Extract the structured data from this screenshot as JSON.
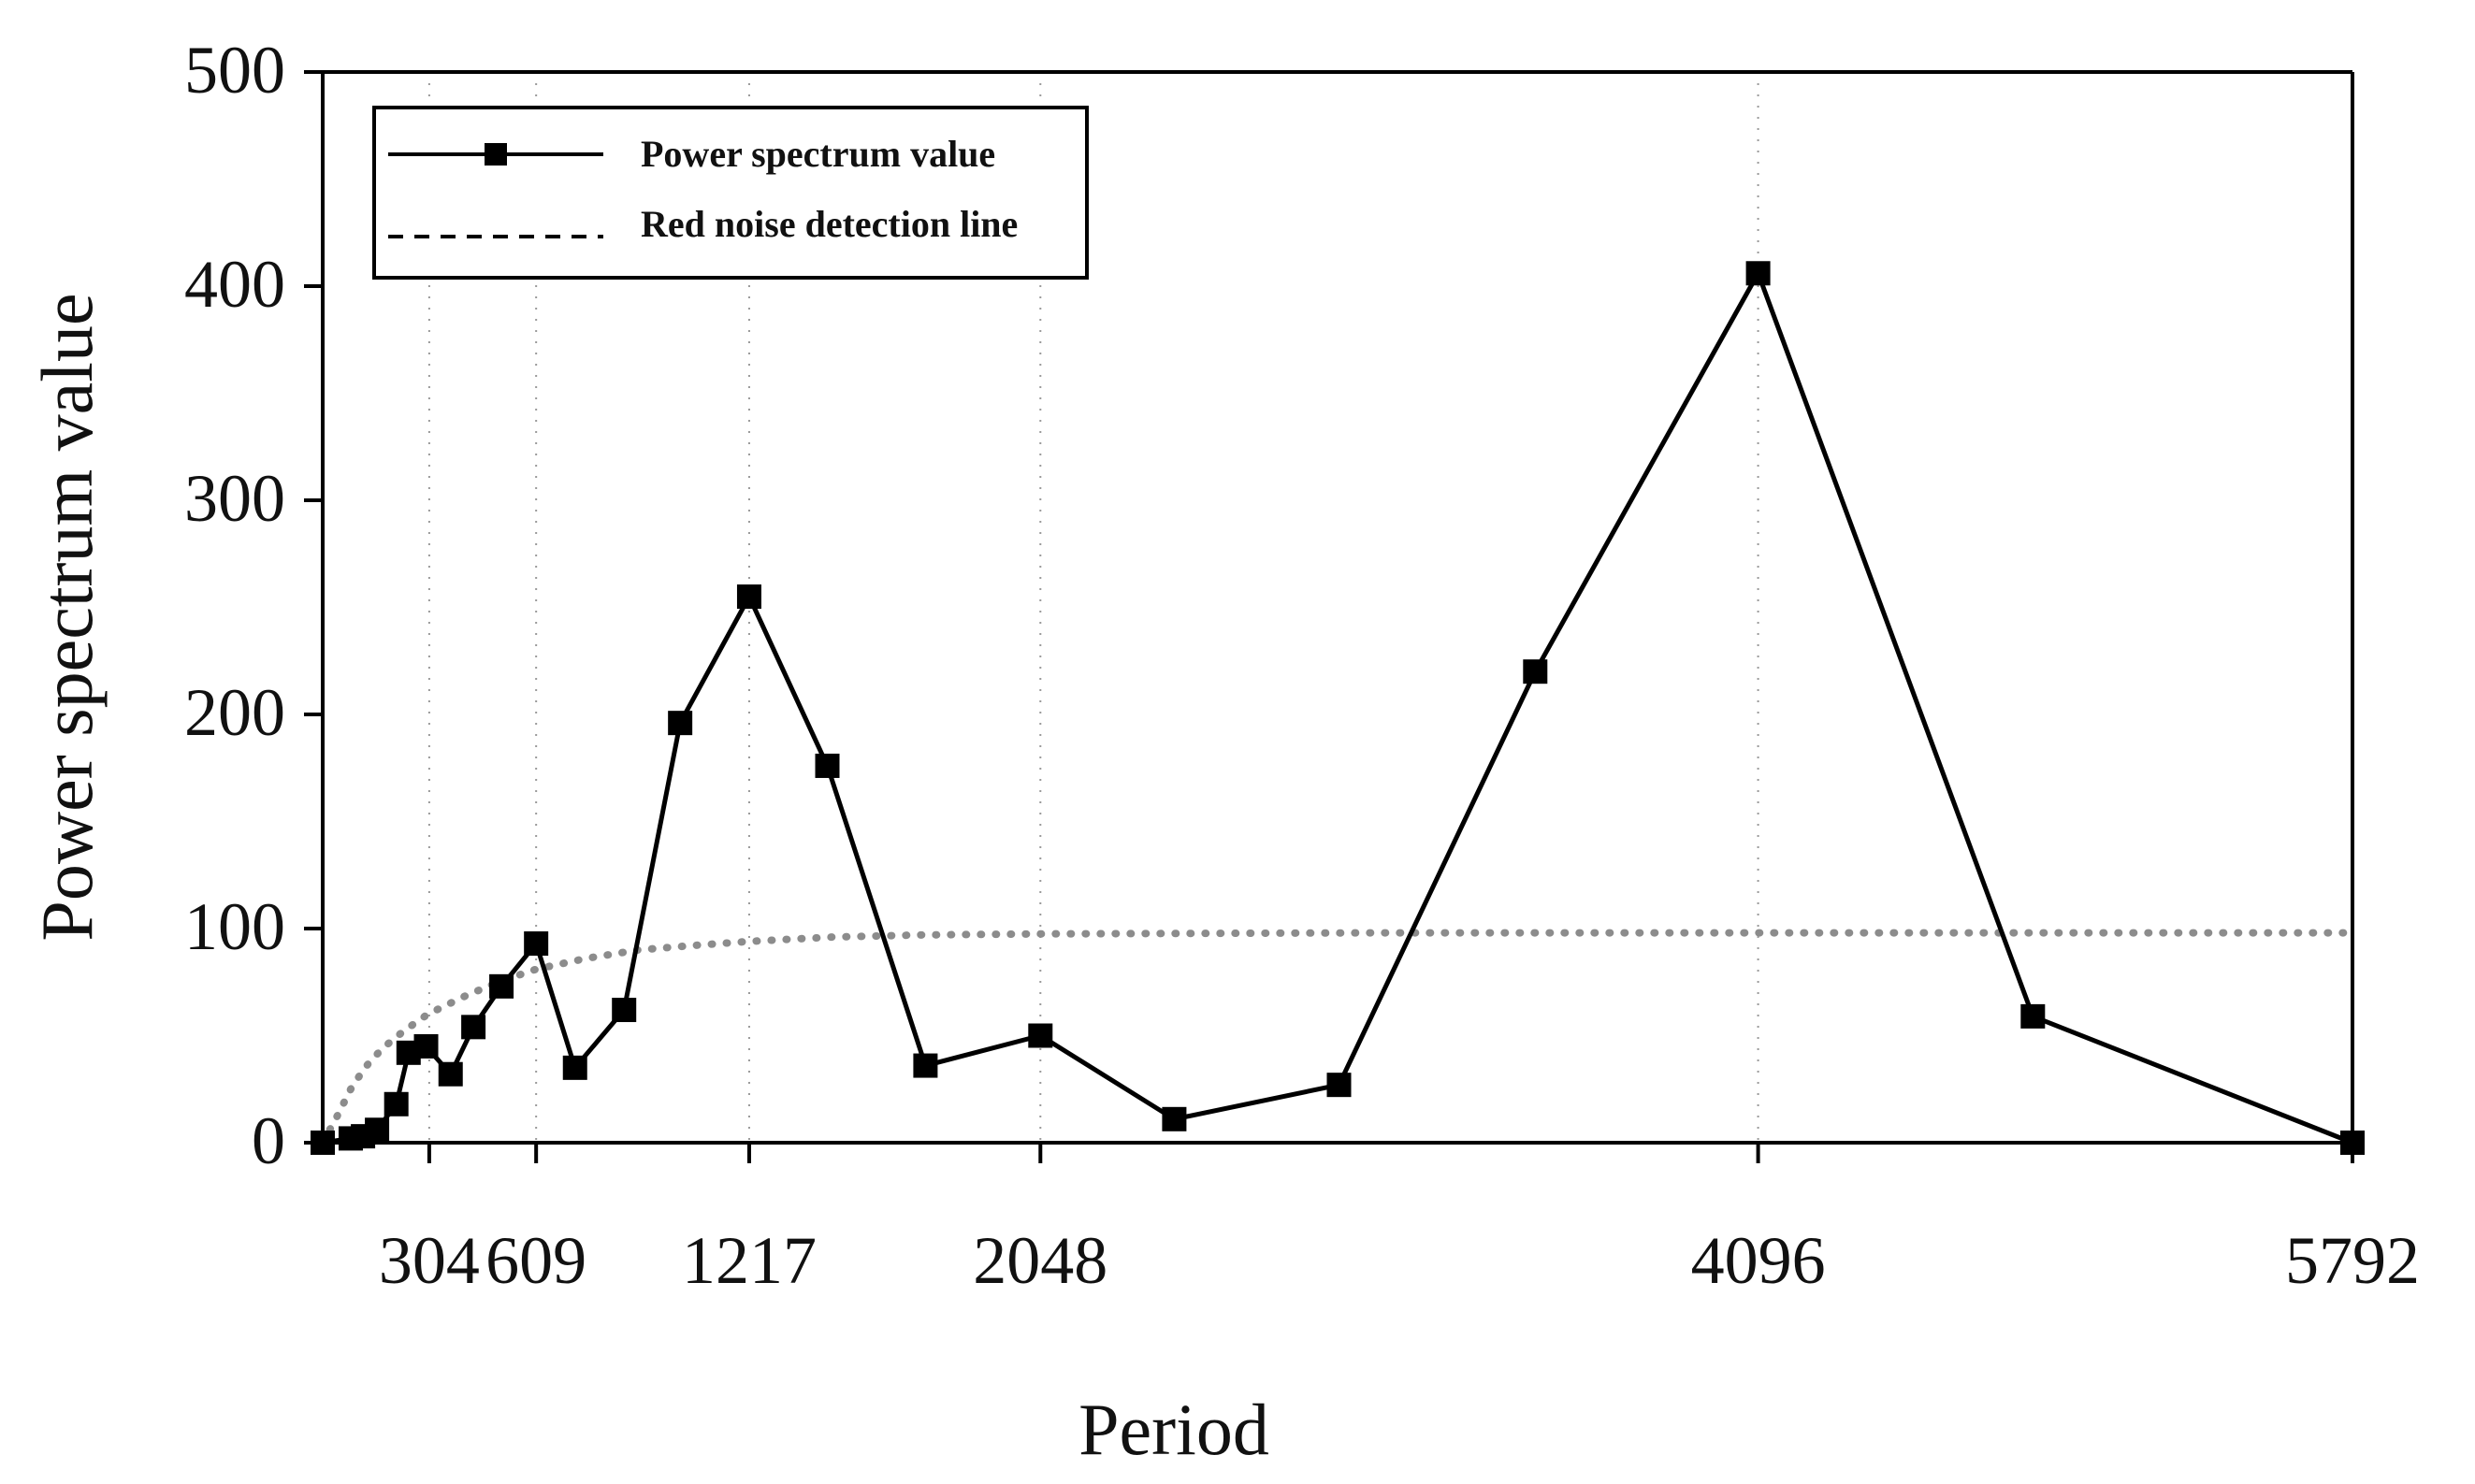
{
  "chart_data": {
    "type": "line",
    "title": "",
    "xlabel": "Period",
    "ylabel": "Power spectrum value",
    "xlim": [
      0,
      5792
    ],
    "ylim": [
      0,
      500
    ],
    "x_ticks": [
      {
        "value": 304,
        "label": "304"
      },
      {
        "value": 609,
        "label": "609"
      },
      {
        "value": 1217,
        "label": "1217"
      },
      {
        "value": 2048,
        "label": "2048"
      },
      {
        "value": 4096,
        "label": "4096"
      },
      {
        "value": 5792,
        "label": "5792"
      }
    ],
    "y_ticks": [
      {
        "value": 0,
        "label": "0"
      },
      {
        "value": 100,
        "label": "100"
      },
      {
        "value": 200,
        "label": "200"
      },
      {
        "value": 300,
        "label": "300"
      },
      {
        "value": 400,
        "label": "400"
      },
      {
        "value": 500,
        "label": "500"
      }
    ],
    "grid": "vertical dotted lines at x ticks",
    "legend_position": "top-left",
    "series": [
      {
        "name": "Power spectrum value",
        "style": "solid line with square markers",
        "color": "#000000",
        "points": [
          [
            0,
            0
          ],
          [
            80,
            2
          ],
          [
            115,
            3
          ],
          [
            155,
            6
          ],
          [
            210,
            18
          ],
          [
            245,
            42
          ],
          [
            295,
            45
          ],
          [
            365,
            32
          ],
          [
            430,
            54
          ],
          [
            510,
            73
          ],
          [
            609,
            93
          ],
          [
            720,
            35
          ],
          [
            860,
            62
          ],
          [
            1020,
            196
          ],
          [
            1217,
            255
          ],
          [
            1440,
            176
          ],
          [
            1720,
            36
          ],
          [
            2048,
            50
          ],
          [
            2430,
            11
          ],
          [
            2900,
            27
          ],
          [
            3460,
            220
          ],
          [
            4096,
            406
          ],
          [
            4880,
            59
          ],
          [
            5792,
            0
          ]
        ]
      },
      {
        "name": "Red noise detection line",
        "style": "dotted line",
        "color": "#8c8c8c",
        "points": [
          [
            0,
            0
          ],
          [
            40,
            12
          ],
          [
            80,
            25
          ],
          [
            120,
            35
          ],
          [
            170,
            44
          ],
          [
            230,
            52
          ],
          [
            300,
            60
          ],
          [
            400,
            68
          ],
          [
            500,
            75
          ],
          [
            609,
            81
          ],
          [
            750,
            86
          ],
          [
            900,
            90
          ],
          [
            1050,
            92
          ],
          [
            1217,
            94
          ],
          [
            1450,
            96
          ],
          [
            1700,
            97
          ],
          [
            2048,
            97.5
          ],
          [
            3000,
            98
          ],
          [
            4096,
            98
          ],
          [
            5000,
            98
          ],
          [
            5792,
            98
          ]
        ]
      }
    ]
  }
}
